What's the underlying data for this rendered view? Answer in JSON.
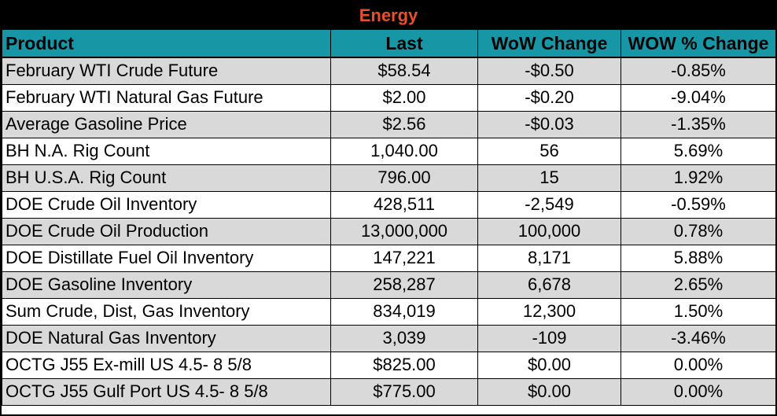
{
  "title": "Energy",
  "colors": {
    "title_bg": "#000000",
    "title_text": "#e8502a",
    "header_bg": "#1797a6",
    "row_shaded": "#d9d9d9",
    "row_plain": "#ffffff"
  },
  "headers": {
    "product": "Product",
    "last": "Last",
    "wow_change": "WoW Change",
    "wow_pct_change": "WOW % Change"
  },
  "rows": [
    {
      "product": "February WTI Crude Future",
      "last": "$58.54",
      "wow_change": "-$0.50",
      "wow_pct_change": "-0.85%"
    },
    {
      "product": "February WTI Natural Gas Future",
      "last": "$2.00",
      "wow_change": "-$0.20",
      "wow_pct_change": "-9.04%"
    },
    {
      "product": "Average Gasoline Price",
      "last": "$2.56",
      "wow_change": "-$0.03",
      "wow_pct_change": "-1.35%"
    },
    {
      "product": "BH N.A. Rig Count",
      "last": "1,040.00",
      "wow_change": "56",
      "wow_pct_change": "5.69%"
    },
    {
      "product": "BH U.S.A. Rig Count",
      "last": "796.00",
      "wow_change": "15",
      "wow_pct_change": "1.92%"
    },
    {
      "product": "DOE Crude Oil Inventory",
      "last": "428,511",
      "wow_change": "-2,549",
      "wow_pct_change": "-0.59%"
    },
    {
      "product": "DOE Crude Oil Production",
      "last": "13,000,000",
      "wow_change": "100,000",
      "wow_pct_change": "0.78%"
    },
    {
      "product": "DOE Distillate Fuel Oil Inventory",
      "last": "147,221",
      "wow_change": "8,171",
      "wow_pct_change": "5.88%"
    },
    {
      "product": "DOE Gasoline Inventory",
      "last": "258,287",
      "wow_change": "6,678",
      "wow_pct_change": "2.65%"
    },
    {
      "product": "Sum Crude, Dist, Gas Inventory",
      "last": "834,019",
      "wow_change": "12,300",
      "wow_pct_change": "1.50%"
    },
    {
      "product": "DOE Natural Gas Inventory",
      "last": "3,039",
      "wow_change": "-109",
      "wow_pct_change": "-3.46%"
    },
    {
      "product": "OCTG J55 Ex-mill US 4.5- 8 5/8",
      "last": "$825.00",
      "wow_change": "$0.00",
      "wow_pct_change": "0.00%"
    },
    {
      "product": "OCTG J55 Gulf Port US 4.5- 8 5/8",
      "last": "$775.00",
      "wow_change": "$0.00",
      "wow_pct_change": "0.00%"
    }
  ]
}
